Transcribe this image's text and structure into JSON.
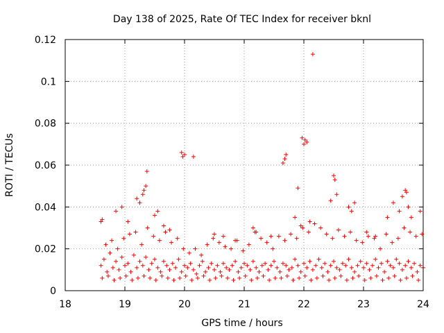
{
  "chart_data": {
    "type": "scatter",
    "title": "Day 138 of 2025, Rate Of TEC Index for receiver bknl",
    "xlabel": "GPS time / hours",
    "ylabel": "ROTI / TECUs",
    "xlim": [
      18,
      24
    ],
    "ylim": [
      0,
      0.12
    ],
    "x_ticks": [
      18,
      19,
      20,
      21,
      22,
      23,
      24
    ],
    "x_tick_labels": [
      "18",
      "19",
      "20",
      "21",
      "22",
      "23",
      "24"
    ],
    "y_ticks": [
      0,
      0.02,
      0.04,
      0.06,
      0.08,
      0.1,
      0.12
    ],
    "y_tick_labels": [
      "0",
      "0.02",
      "0.04",
      "0.06",
      "0.08",
      "0.1",
      "0.12"
    ],
    "grid": true,
    "marker": "+",
    "marker_color": "#ff0000",
    "series": [
      {
        "name": "ROTI",
        "x": [
          18.6,
          18.65,
          18.7,
          18.75,
          18.8,
          18.85,
          18.9,
          18.95,
          19.0,
          19.05,
          19.1,
          19.15,
          19.2,
          19.25,
          19.3,
          19.35,
          19.4,
          19.45,
          19.5,
          19.55,
          19.6,
          19.65,
          19.7,
          19.75,
          19.8,
          19.85,
          19.9,
          19.95,
          20.0,
          20.05,
          20.1,
          20.15,
          20.2,
          20.25,
          20.3,
          20.35,
          20.4,
          20.45,
          20.5,
          20.55,
          20.6,
          20.65,
          20.7,
          20.75,
          20.8,
          20.85,
          20.9,
          20.95,
          21.0,
          21.05,
          21.1,
          21.15,
          21.2,
          21.25,
          21.3,
          21.35,
          21.4,
          21.45,
          21.5,
          21.55,
          21.6,
          21.65,
          21.7,
          21.75,
          21.8,
          21.85,
          21.9,
          21.95,
          22.0,
          22.05,
          22.1,
          22.15,
          22.2,
          22.25,
          22.3,
          22.35,
          22.4,
          22.45,
          22.5,
          22.55,
          22.6,
          22.65,
          22.7,
          22.75,
          22.8,
          22.85,
          22.9,
          22.95,
          23.0,
          23.05,
          23.1,
          23.15,
          23.2,
          23.25,
          23.3,
          23.35,
          23.4,
          23.45,
          23.5,
          23.55,
          23.6,
          23.65,
          23.7,
          23.75,
          23.8,
          23.85,
          23.9,
          23.95,
          24.0,
          18.62,
          18.72,
          18.82,
          18.92,
          19.02,
          19.12,
          19.22,
          19.32,
          19.42,
          19.52,
          19.62,
          19.72,
          19.82,
          19.92,
          20.02,
          20.12,
          20.22,
          20.32,
          20.42,
          20.52,
          20.62,
          20.72,
          20.82,
          20.92,
          21.02,
          21.12,
          21.22,
          21.32,
          21.42,
          21.52,
          21.62,
          21.72,
          21.82,
          21.92,
          22.02,
          22.12,
          22.22,
          22.32,
          22.42,
          22.52,
          22.62,
          22.72,
          22.82,
          22.92,
          23.02,
          23.12,
          23.22,
          23.32,
          23.42,
          23.52,
          23.62,
          23.72,
          23.82,
          23.92,
          18.6,
          18.62,
          18.68,
          18.78,
          18.88,
          18.98,
          19.08,
          19.18,
          19.28,
          19.38,
          19.48,
          19.58,
          19.68,
          19.78,
          19.88,
          19.98,
          20.08,
          20.18,
          20.28,
          20.38,
          20.48,
          20.58,
          20.68,
          20.78,
          20.88,
          20.98,
          21.08,
          21.18,
          21.28,
          21.38,
          21.48,
          21.58,
          21.68,
          21.78,
          21.88,
          21.98,
          22.08,
          22.18,
          22.28,
          22.38,
          22.48,
          22.58,
          22.68,
          22.78,
          22.88,
          22.98,
          23.08,
          23.18,
          23.28,
          23.38,
          23.48,
          23.58,
          23.68,
          23.78,
          23.88,
          23.98,
          18.85,
          18.95,
          19.05,
          19.2,
          19.25,
          19.3,
          19.32,
          19.35,
          19.37,
          19.5,
          19.55,
          19.65,
          19.75,
          19.95,
          19.97,
          20.0,
          20.15,
          20.5,
          20.65,
          20.85,
          21.15,
          21.2,
          21.45,
          21.65,
          21.68,
          21.7,
          21.85,
          21.9,
          21.95,
          21.97,
          22.0,
          22.02,
          22.05,
          22.1,
          22.15,
          22.45,
          22.5,
          22.52,
          22.55,
          22.75,
          22.8,
          22.85,
          23.05,
          23.2,
          23.4,
          23.5,
          23.6,
          23.65,
          23.7,
          23.72,
          23.75,
          23.8,
          23.95
        ],
        "y": [
          0.012,
          0.015,
          0.009,
          0.018,
          0.011,
          0.014,
          0.01,
          0.016,
          0.012,
          0.013,
          0.009,
          0.017,
          0.011,
          0.014,
          0.012,
          0.016,
          0.01,
          0.013,
          0.015,
          0.011,
          0.009,
          0.014,
          0.012,
          0.01,
          0.013,
          0.011,
          0.015,
          0.009,
          0.012,
          0.011,
          0.013,
          0.01,
          0.008,
          0.012,
          0.014,
          0.009,
          0.011,
          0.013,
          0.01,
          0.012,
          0.009,
          0.013,
          0.011,
          0.01,
          0.012,
          0.014,
          0.009,
          0.011,
          0.013,
          0.012,
          0.01,
          0.014,
          0.011,
          0.009,
          0.012,
          0.013,
          0.01,
          0.012,
          0.014,
          0.011,
          0.009,
          0.013,
          0.012,
          0.01,
          0.011,
          0.015,
          0.012,
          0.009,
          0.013,
          0.011,
          0.014,
          0.01,
          0.012,
          0.015,
          0.011,
          0.013,
          0.009,
          0.012,
          0.014,
          0.011,
          0.01,
          0.013,
          0.012,
          0.015,
          0.011,
          0.009,
          0.012,
          0.014,
          0.011,
          0.013,
          0.01,
          0.012,
          0.015,
          0.011,
          0.013,
          0.009,
          0.014,
          0.012,
          0.011,
          0.015,
          0.013,
          0.01,
          0.012,
          0.014,
          0.011,
          0.013,
          0.009,
          0.012,
          0.011,
          0.006,
          0.007,
          0.005,
          0.006,
          0.007,
          0.005,
          0.006,
          0.007,
          0.006,
          0.005,
          0.007,
          0.006,
          0.005,
          0.006,
          0.007,
          0.005,
          0.006,
          0.007,
          0.005,
          0.006,
          0.007,
          0.006,
          0.005,
          0.006,
          0.007,
          0.005,
          0.006,
          0.007,
          0.005,
          0.006,
          0.006,
          0.007,
          0.005,
          0.006,
          0.007,
          0.005,
          0.006,
          0.007,
          0.005,
          0.006,
          0.007,
          0.005,
          0.006,
          0.007,
          0.005,
          0.006,
          0.007,
          0.005,
          0.006,
          0.007,
          0.005,
          0.006,
          0.007,
          0.005,
          0.033,
          0.034,
          0.022,
          0.024,
          0.02,
          0.025,
          0.027,
          0.028,
          0.022,
          0.03,
          0.026,
          0.024,
          0.028,
          0.023,
          0.025,
          0.02,
          0.018,
          0.02,
          0.017,
          0.022,
          0.025,
          0.023,
          0.021,
          0.02,
          0.024,
          0.019,
          0.022,
          0.028,
          0.025,
          0.023,
          0.02,
          0.026,
          0.024,
          0.027,
          0.025,
          0.03,
          0.028,
          0.032,
          0.03,
          0.027,
          0.025,
          0.029,
          0.026,
          0.028,
          0.024,
          0.023,
          0.026,
          0.025,
          0.02,
          0.027,
          0.023,
          0.025,
          0.03,
          0.028,
          0.026,
          0.027,
          0.038,
          0.04,
          0.033,
          0.044,
          0.042,
          0.046,
          0.048,
          0.05,
          0.057,
          0.036,
          0.038,
          0.031,
          0.029,
          0.066,
          0.064,
          0.065,
          0.064,
          0.027,
          0.026,
          0.024,
          0.03,
          0.028,
          0.026,
          0.061,
          0.063,
          0.065,
          0.035,
          0.049,
          0.031,
          0.073,
          0.07,
          0.072,
          0.071,
          0.033,
          0.113,
          0.043,
          0.055,
          0.053,
          0.046,
          0.04,
          0.038,
          0.042,
          0.028,
          0.026,
          0.035,
          0.042,
          0.038,
          0.045,
          0.048,
          0.047,
          0.04,
          0.035,
          0.038
        ]
      }
    ]
  }
}
